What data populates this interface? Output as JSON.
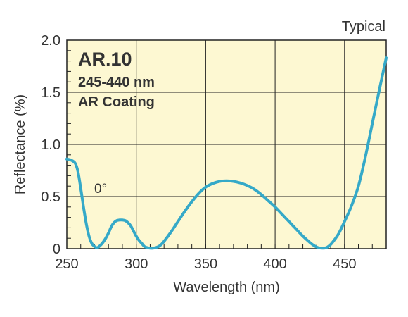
{
  "chart_data": {
    "type": "line",
    "title": "",
    "corner_note": "Typical",
    "xlabel": "Wavelength (nm)",
    "ylabel": "Reflectance (%)",
    "xlim": [
      250,
      480
    ],
    "ylim": [
      0,
      2.0
    ],
    "xticks": [
      250,
      300,
      350,
      400,
      450
    ],
    "yticks": [
      "0",
      "0.5",
      "1.0",
      "1.5",
      "2.0"
    ],
    "grid": true,
    "annotations": {
      "product": "AR.10",
      "range": "245-440 nm",
      "coating": "AR Coating",
      "angle": "0°"
    },
    "colors": {
      "plot_background": "#fdf8d2",
      "curve": "#35a9c8",
      "grid": "#222222",
      "text": "#333333"
    },
    "series": [
      {
        "x": [
          250,
          253,
          256,
          258,
          260,
          262,
          264,
          266,
          268,
          270,
          272,
          274,
          276,
          278,
          280,
          282,
          284,
          286,
          288,
          290,
          292,
          294,
          296,
          298,
          300,
          302,
          304,
          306,
          308,
          310,
          312,
          314,
          316,
          318,
          320,
          325,
          330,
          335,
          340,
          345,
          350,
          355,
          360,
          365,
          370,
          375,
          380,
          385,
          390,
          395,
          400,
          405,
          410,
          415,
          420,
          425,
          428,
          431,
          434,
          437,
          440,
          443,
          446,
          450,
          455,
          460,
          465,
          470,
          475,
          480
        ],
        "y": [
          0.86,
          0.85,
          0.82,
          0.74,
          0.58,
          0.4,
          0.24,
          0.12,
          0.05,
          0.02,
          0.01,
          0.03,
          0.06,
          0.1,
          0.15,
          0.21,
          0.25,
          0.27,
          0.275,
          0.275,
          0.27,
          0.25,
          0.22,
          0.17,
          0.12,
          0.08,
          0.05,
          0.02,
          0.01,
          0.005,
          0.005,
          0.01,
          0.02,
          0.04,
          0.07,
          0.16,
          0.26,
          0.36,
          0.45,
          0.53,
          0.59,
          0.625,
          0.645,
          0.65,
          0.645,
          0.63,
          0.605,
          0.57,
          0.52,
          0.46,
          0.4,
          0.33,
          0.26,
          0.19,
          0.12,
          0.06,
          0.03,
          0.01,
          0.005,
          0.01,
          0.04,
          0.09,
          0.15,
          0.26,
          0.41,
          0.6,
          0.88,
          1.2,
          1.52,
          1.83
        ]
      }
    ]
  }
}
